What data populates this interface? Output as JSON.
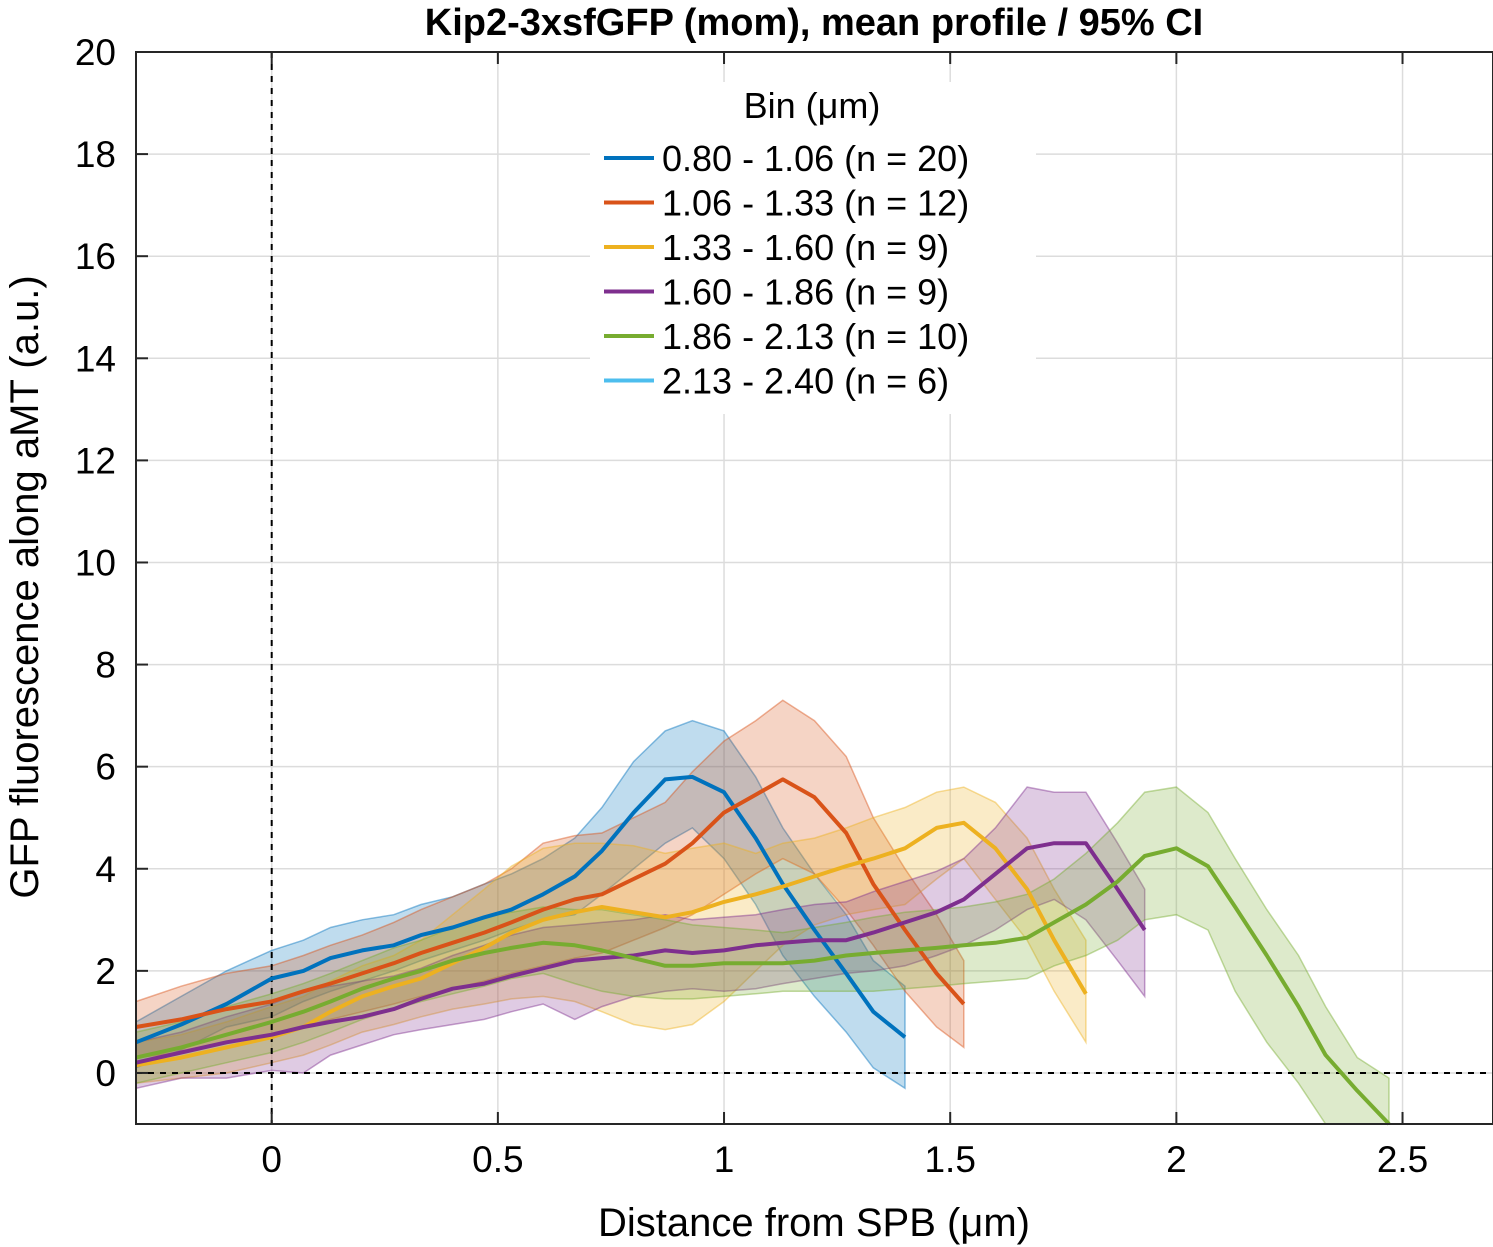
{
  "chart_data": {
    "type": "line",
    "title": "Kip2-3xsfGFP (mom), mean profile / 95% CI",
    "xlabel": "Distance from SPB (μm)",
    "ylabel": "GFP fluorescence along aMT (a.u.)",
    "xlim": [
      -0.3,
      2.7
    ],
    "ylim": [
      -1,
      20
    ],
    "xticks": [
      0,
      0.5,
      1,
      1.5,
      2,
      2.5
    ],
    "xtick_labels": [
      "0",
      "0.5",
      "1",
      "1.5",
      "2",
      "2.5"
    ],
    "yticks": [
      0,
      2,
      4,
      6,
      8,
      10,
      12,
      14,
      16,
      18,
      20
    ],
    "ytick_labels": [
      "0",
      "2",
      "4",
      "6",
      "8",
      "10",
      "12",
      "14",
      "16",
      "18",
      "20"
    ],
    "grid": true,
    "reference_lines": [
      {
        "axis": "x",
        "value": 0,
        "style": "dashed"
      },
      {
        "axis": "y",
        "value": 0,
        "style": "dashed"
      }
    ],
    "legend": {
      "title": "Bin (μm)",
      "location": "top-center"
    },
    "series": [
      {
        "name": "0.80 - 1.06 (n =  20)",
        "color": "#0072bd",
        "x": [
          -0.3,
          -0.2,
          -0.1,
          0,
          0.07,
          0.13,
          0.2,
          0.27,
          0.33,
          0.4,
          0.47,
          0.53,
          0.6,
          0.67,
          0.73,
          0.8,
          0.87,
          0.93,
          1.0,
          1.07,
          1.13,
          1.2,
          1.27,
          1.33,
          1.4
        ],
        "y": [
          0.6,
          0.95,
          1.35,
          1.85,
          2.0,
          2.25,
          2.4,
          2.5,
          2.7,
          2.85,
          3.05,
          3.2,
          3.5,
          3.85,
          4.35,
          5.1,
          5.75,
          5.8,
          5.5,
          4.6,
          3.7,
          2.8,
          1.95,
          1.2,
          0.7
        ],
        "ci_lower": [
          0.1,
          0.45,
          0.9,
          1.1,
          1.4,
          1.6,
          1.8,
          2.0,
          2.2,
          2.4,
          2.6,
          2.8,
          3.0,
          3.1,
          3.5,
          4.0,
          4.5,
          4.8,
          4.2,
          3.3,
          2.3,
          1.5,
          0.8,
          0.1,
          -0.3
        ],
        "ci_upper": [
          1.0,
          1.5,
          2.0,
          2.4,
          2.6,
          2.85,
          3.0,
          3.1,
          3.3,
          3.45,
          3.7,
          3.9,
          4.2,
          4.6,
          5.2,
          6.1,
          6.7,
          6.9,
          6.7,
          5.8,
          4.8,
          3.9,
          3.1,
          2.2,
          1.7
        ]
      },
      {
        "name": "1.06 - 1.33 (n =  12)",
        "color": "#d95319",
        "x": [
          -0.3,
          -0.2,
          -0.1,
          0,
          0.07,
          0.13,
          0.2,
          0.27,
          0.33,
          0.4,
          0.47,
          0.53,
          0.6,
          0.67,
          0.73,
          0.8,
          0.87,
          0.93,
          1.0,
          1.07,
          1.13,
          1.2,
          1.27,
          1.33,
          1.4,
          1.47,
          1.53
        ],
        "y": [
          0.9,
          1.05,
          1.25,
          1.4,
          1.6,
          1.75,
          1.95,
          2.15,
          2.35,
          2.55,
          2.75,
          2.95,
          3.2,
          3.4,
          3.5,
          3.8,
          4.1,
          4.5,
          5.1,
          5.45,
          5.75,
          5.4,
          4.7,
          3.7,
          2.8,
          1.95,
          1.35
        ],
        "ci_lower": [
          0.3,
          0.4,
          0.6,
          0.75,
          0.9,
          1.05,
          1.2,
          1.35,
          1.5,
          1.65,
          1.8,
          1.95,
          2.1,
          2.25,
          2.35,
          2.6,
          2.85,
          3.1,
          3.5,
          3.9,
          4.2,
          3.9,
          3.2,
          2.5,
          1.6,
          0.9,
          0.5
        ],
        "ci_upper": [
          1.4,
          1.7,
          1.95,
          2.1,
          2.3,
          2.5,
          2.7,
          2.95,
          3.2,
          3.45,
          3.7,
          4.0,
          4.5,
          4.65,
          4.7,
          5.0,
          5.3,
          5.9,
          6.5,
          6.9,
          7.3,
          6.9,
          6.2,
          5.0,
          4.0,
          3.1,
          2.2
        ]
      },
      {
        "name": "1.33 - 1.60 (n =   9)",
        "color": "#edb120",
        "x": [
          -0.3,
          -0.2,
          -0.1,
          0,
          0.07,
          0.13,
          0.2,
          0.27,
          0.33,
          0.4,
          0.47,
          0.53,
          0.6,
          0.67,
          0.73,
          0.8,
          0.87,
          0.93,
          1.0,
          1.07,
          1.13,
          1.2,
          1.27,
          1.33,
          1.4,
          1.47,
          1.53,
          1.6,
          1.67,
          1.73,
          1.8
        ],
        "y": [
          0.15,
          0.3,
          0.5,
          0.7,
          0.9,
          1.2,
          1.5,
          1.7,
          1.85,
          2.15,
          2.45,
          2.75,
          3.0,
          3.15,
          3.25,
          3.15,
          3.05,
          3.15,
          3.35,
          3.5,
          3.65,
          3.85,
          4.05,
          4.2,
          4.4,
          4.8,
          4.9,
          4.4,
          3.6,
          2.6,
          1.55
        ],
        "ci_lower": [
          -0.2,
          -0.1,
          0.0,
          0.2,
          0.35,
          0.55,
          0.8,
          0.95,
          1.1,
          1.25,
          1.35,
          1.45,
          1.5,
          1.4,
          1.2,
          0.95,
          0.85,
          0.95,
          1.4,
          2.0,
          2.5,
          2.9,
          3.1,
          3.2,
          3.3,
          3.8,
          4.2,
          3.4,
          2.6,
          1.6,
          0.6
        ],
        "ci_upper": [
          0.6,
          0.75,
          1.0,
          1.3,
          1.5,
          1.8,
          2.1,
          2.3,
          2.6,
          3.1,
          3.6,
          4.05,
          4.4,
          4.5,
          4.5,
          4.45,
          4.3,
          4.4,
          4.5,
          4.3,
          4.5,
          4.6,
          4.8,
          5.0,
          5.2,
          5.5,
          5.6,
          5.3,
          4.6,
          3.6,
          2.6
        ]
      },
      {
        "name": "1.60 - 1.86 (n =   9)",
        "color": "#7e2f8e",
        "x": [
          -0.3,
          -0.2,
          -0.1,
          0,
          0.07,
          0.13,
          0.2,
          0.27,
          0.33,
          0.4,
          0.47,
          0.53,
          0.6,
          0.67,
          0.73,
          0.8,
          0.87,
          0.93,
          1.0,
          1.07,
          1.13,
          1.2,
          1.27,
          1.33,
          1.4,
          1.47,
          1.53,
          1.6,
          1.67,
          1.73,
          1.8,
          1.87,
          1.93
        ],
        "y": [
          0.2,
          0.4,
          0.6,
          0.75,
          0.9,
          1.0,
          1.1,
          1.25,
          1.45,
          1.65,
          1.75,
          1.9,
          2.05,
          2.2,
          2.25,
          2.3,
          2.4,
          2.35,
          2.4,
          2.5,
          2.55,
          2.6,
          2.6,
          2.75,
          2.95,
          3.15,
          3.4,
          3.9,
          4.4,
          4.5,
          4.5,
          3.6,
          2.8
        ],
        "ci_lower": [
          -0.3,
          -0.1,
          -0.1,
          0.05,
          0.0,
          0.35,
          0.55,
          0.75,
          0.85,
          0.95,
          1.05,
          1.2,
          1.35,
          1.05,
          1.3,
          1.5,
          1.6,
          1.65,
          1.6,
          1.65,
          1.75,
          1.85,
          1.95,
          2.0,
          2.1,
          2.3,
          2.5,
          2.8,
          3.2,
          3.4,
          3.0,
          2.2,
          1.5
        ],
        "ci_upper": [
          0.6,
          0.8,
          1.1,
          1.35,
          1.6,
          1.7,
          1.8,
          1.9,
          2.05,
          2.3,
          2.5,
          2.7,
          2.85,
          2.9,
          2.95,
          3.0,
          3.1,
          3.0,
          3.05,
          3.1,
          3.2,
          3.3,
          3.35,
          3.55,
          3.75,
          3.95,
          4.2,
          4.8,
          5.6,
          5.5,
          5.5,
          4.5,
          3.6
        ]
      },
      {
        "name": "1.86 - 2.13 (n =  10)",
        "color": "#77ac30",
        "x": [
          -0.3,
          -0.2,
          -0.1,
          0,
          0.07,
          0.13,
          0.2,
          0.27,
          0.33,
          0.4,
          0.47,
          0.53,
          0.6,
          0.67,
          0.73,
          0.8,
          0.87,
          0.93,
          1.0,
          1.07,
          1.13,
          1.2,
          1.27,
          1.33,
          1.4,
          1.47,
          1.53,
          1.6,
          1.67,
          1.73,
          1.8,
          1.87,
          1.93,
          2.0,
          2.07,
          2.13,
          2.2,
          2.27,
          2.33,
          2.4,
          2.47
        ],
        "y": [
          0.3,
          0.5,
          0.75,
          1.0,
          1.2,
          1.4,
          1.65,
          1.85,
          2.0,
          2.2,
          2.35,
          2.45,
          2.55,
          2.5,
          2.4,
          2.25,
          2.1,
          2.1,
          2.15,
          2.15,
          2.15,
          2.2,
          2.3,
          2.35,
          2.4,
          2.45,
          2.5,
          2.55,
          2.65,
          2.95,
          3.3,
          3.75,
          4.25,
          4.4,
          4.05,
          3.25,
          2.3,
          1.3,
          0.35,
          -0.35,
          -1.0
        ],
        "ci_lower": [
          -0.2,
          0.0,
          0.2,
          0.4,
          0.6,
          0.8,
          1.05,
          1.25,
          1.4,
          1.55,
          1.7,
          1.85,
          1.95,
          1.75,
          1.6,
          1.5,
          1.45,
          1.45,
          1.5,
          1.55,
          1.6,
          1.6,
          1.6,
          1.6,
          1.65,
          1.7,
          1.75,
          1.8,
          1.85,
          2.1,
          2.3,
          2.6,
          3.0,
          3.1,
          2.8,
          1.6,
          0.6,
          -0.2,
          -1.0,
          -1.0,
          -1.0
        ],
        "ci_upper": [
          0.8,
          1.0,
          1.3,
          1.55,
          1.75,
          1.95,
          2.2,
          2.45,
          2.6,
          2.85,
          3.05,
          3.15,
          3.25,
          3.2,
          3.2,
          3.1,
          3.0,
          2.9,
          2.85,
          2.8,
          2.75,
          2.85,
          2.95,
          3.05,
          3.15,
          3.2,
          3.25,
          3.35,
          3.5,
          3.8,
          4.3,
          4.9,
          5.5,
          5.6,
          5.1,
          4.2,
          3.2,
          2.3,
          1.3,
          0.3,
          -0.1
        ]
      },
      {
        "name": "2.13 - 2.40 (n =   6)",
        "color": "#4dbeee",
        "x": [],
        "y": [],
        "ci_lower": [],
        "ci_upper": []
      }
    ]
  }
}
